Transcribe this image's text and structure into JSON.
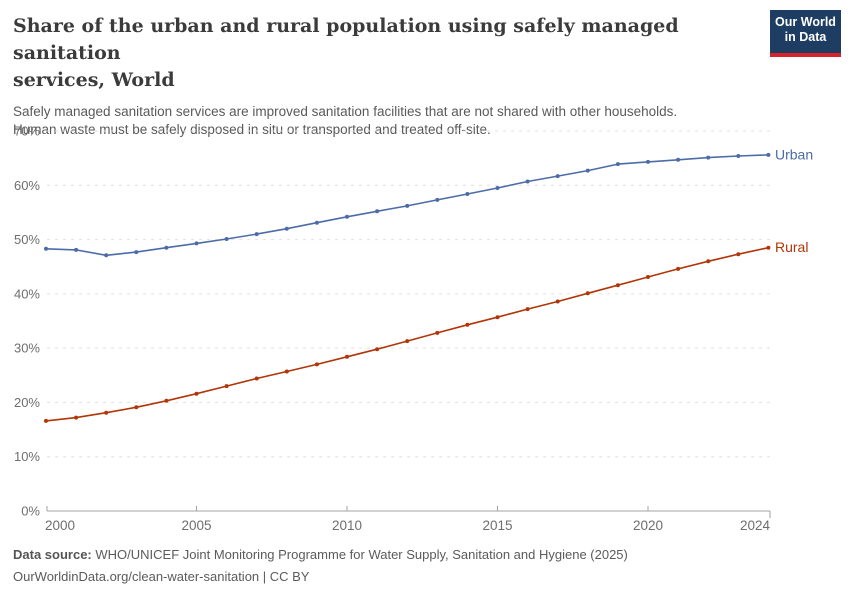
{
  "header": {
    "title_lines": [
      "Share of the urban and rural population using safely managed sanitation",
      "services, World"
    ],
    "subtitle_lines": [
      "Safely managed sanitation services are improved sanitation facilities that are not shared with other households.",
      "Human waste must be safely disposed in situ or transported and treated off-site."
    ],
    "logo": {
      "line1": "Our World",
      "line2": "in Data"
    }
  },
  "colors": {
    "urban": "#4C6CA8",
    "rural": "#B13507",
    "logo_bg": "#1d3d63",
    "logo_bar": "#d6232b",
    "gridline": "#e0e0e0",
    "axis": "#a3a3a3",
    "tick_text": "#6e6e6e"
  },
  "chart_data": {
    "type": "line",
    "title": "Share of the urban and rural population using safely managed sanitation services, World",
    "xlabel": "",
    "ylabel": "",
    "x": [
      2000,
      2001,
      2002,
      2003,
      2004,
      2005,
      2006,
      2007,
      2008,
      2009,
      2010,
      2011,
      2012,
      2013,
      2014,
      2015,
      2016,
      2017,
      2018,
      2019,
      2020,
      2021,
      2022,
      2023,
      2024
    ],
    "series": [
      {
        "name": "Urban",
        "color": "#4C6CA8",
        "values": [
          48.3,
          48.1,
          47.1,
          47.7,
          48.5,
          49.3,
          50.1,
          51.0,
          52.0,
          53.1,
          54.2,
          55.2,
          56.2,
          57.3,
          58.4,
          59.5,
          60.7,
          61.7,
          62.7,
          63.9,
          64.3,
          64.7,
          65.1,
          65.4,
          65.6
        ]
      },
      {
        "name": "Rural",
        "color": "#B13507",
        "values": [
          16.6,
          17.2,
          18.1,
          19.1,
          20.3,
          21.6,
          23.0,
          24.4,
          25.7,
          27.0,
          28.4,
          29.8,
          31.3,
          32.8,
          34.3,
          35.7,
          37.2,
          38.6,
          40.1,
          41.6,
          43.1,
          44.6,
          46.0,
          47.3,
          48.5
        ]
      }
    ],
    "ylim": [
      0,
      70
    ],
    "yticks": [
      0,
      10,
      20,
      30,
      40,
      50,
      60,
      70
    ],
    "ytick_format": "{v}%",
    "xticks": [
      2000,
      2005,
      2010,
      2015,
      2020,
      2024
    ],
    "grid": "horizontal-dashed",
    "legend_position": "end-of-line-labels",
    "markers": "point-per-year"
  },
  "footer": {
    "data_source_label": "Data source:",
    "data_source_value": "WHO/UNICEF Joint Monitoring Programme for Water Supply, Sanitation and Hygiene (2025)",
    "citation": "OurWorldinData.org/clean-water-sanitation | CC BY"
  }
}
